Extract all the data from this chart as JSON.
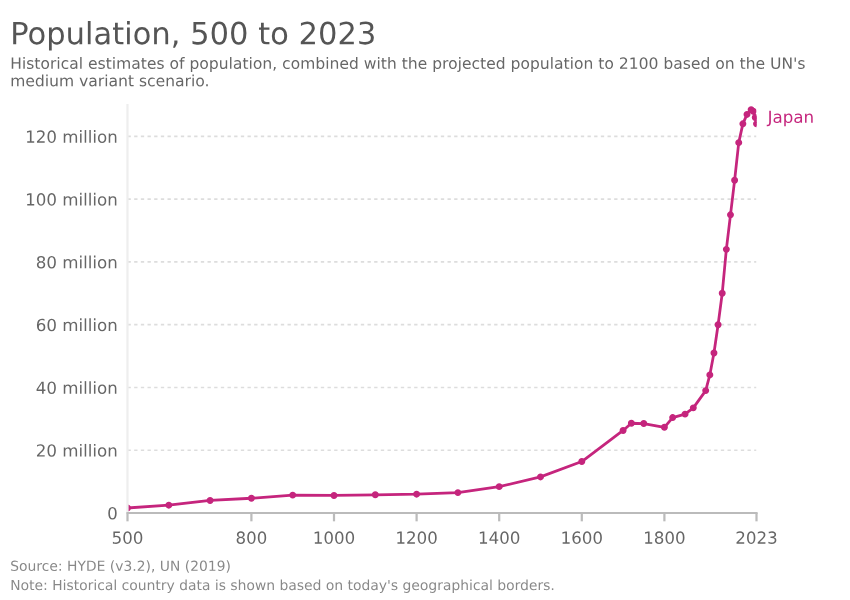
{
  "chart_data": {
    "type": "line",
    "title": "Population, 500 to 2023",
    "subtitle": "Historical estimates of population, combined with the projected population to 2100 based on the UN's medium variant scenario.",
    "x": [
      500,
      600,
      700,
      800,
      900,
      1000,
      1100,
      1200,
      1300,
      1400,
      1500,
      1600,
      1700,
      1720,
      1750,
      1800,
      1820,
      1850,
      1870,
      1900,
      1910,
      1920,
      1930,
      1940,
      1950,
      1960,
      1970,
      1980,
      1990,
      2000,
      2010,
      2015,
      2020,
      2023
    ],
    "series": [
      {
        "name": "Japan",
        "color": "#c5257d",
        "values": [
          1.6,
          2.5,
          4,
          4.7,
          5.7,
          5.6,
          5.8,
          6,
          6.5,
          8.4,
          11.5,
          16.4,
          26.3,
          28.6,
          28.5,
          27.3,
          30.4,
          31.5,
          33.5,
          39,
          44,
          51,
          60,
          70,
          84,
          95,
          106,
          118,
          124,
          127,
          128.5,
          128,
          126,
          124
        ]
      }
    ],
    "xlim": [
      500,
      2023
    ],
    "xticks": [
      500,
      800,
      1000,
      1200,
      1400,
      1600,
      1800,
      2023
    ],
    "ylim": [
      0,
      130
    ],
    "yticks": [
      {
        "value": 0,
        "label": "0"
      },
      {
        "value": 20,
        "label": "20 million"
      },
      {
        "value": 40,
        "label": "40 million"
      },
      {
        "value": 60,
        "label": "60 million"
      },
      {
        "value": 80,
        "label": "80 million"
      },
      {
        "value": 100,
        "label": "100 million"
      },
      {
        "value": 120,
        "label": "120 million"
      }
    ],
    "grid": "y",
    "marker": "circle",
    "line_style": "solid",
    "annotations": [
      "Source: HYDE (v3.2), UN (2019)",
      "Note: Historical country data is shown based on today's geographical borders."
    ]
  }
}
